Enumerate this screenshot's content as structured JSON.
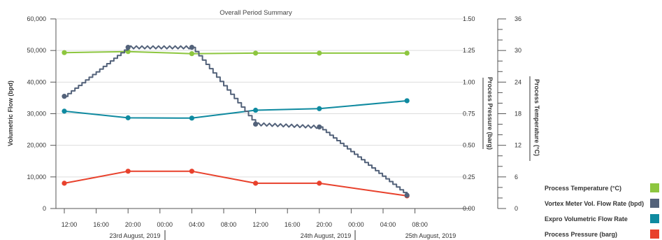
{
  "chart_data": {
    "type": "line",
    "title": "Overall Period Summary",
    "y_left": {
      "label": "Volumetric Flow (bpd)",
      "ylim": [
        0,
        60000
      ],
      "ticks": [
        "0",
        "10,000",
        "20,000",
        "30,000",
        "40,000",
        "50,000",
        "60,000"
      ]
    },
    "y_right1": {
      "label": "Process Pressure (barg)",
      "ylim": [
        0,
        1.5
      ],
      "ticks": [
        "0.00",
        "0.25",
        "0.50",
        "0.75",
        "1.00",
        "1.25",
        "1.50"
      ]
    },
    "y_right2": {
      "label": "Process Temperature (°C)",
      "ylim": [
        0,
        36
      ],
      "ticks": [
        "0",
        "6",
        "12",
        "18",
        "24",
        "30",
        "36"
      ]
    },
    "x_ticks": [
      "12:00",
      "16:00",
      "20:00",
      "00:00",
      "04:00",
      "08:00",
      "12:00",
      "16:00",
      "20:00",
      "00:00",
      "04:00",
      "08:00"
    ],
    "date_labels": [
      "23rd August, 2019",
      "24th August, 2019",
      "25th August, 2019"
    ],
    "x_hours_range": [
      0,
      48
    ],
    "grid": true,
    "legend_position": "bottom-right",
    "series": [
      {
        "name": "Process Temperature (°C)",
        "axis": "temperature",
        "color": "#8dc63f",
        "x_hours": [
          0,
          8,
          16,
          24,
          32,
          43
        ],
        "values": [
          29.6,
          29.8,
          29.4,
          29.5,
          29.5,
          29.5
        ]
      },
      {
        "name": "Vortex Meter Vol. Flow Rate (bpd)",
        "axis": "flow",
        "color": "#53627a",
        "stepped": true,
        "x_hours": [
          0,
          8,
          16,
          24,
          32,
          43
        ],
        "values": [
          35500,
          51000,
          51000,
          26700,
          25800,
          4200
        ]
      },
      {
        "name": "Expro Volumetric Flow Rate",
        "axis": "flow",
        "color": "#0f8aa0",
        "x_hours": [
          0,
          8,
          16,
          24,
          32,
          43
        ],
        "values": [
          30800,
          28700,
          28600,
          31100,
          31600,
          34100
        ]
      },
      {
        "name": "Process Pressure (barg)",
        "axis": "pressure",
        "color": "#e8412c",
        "x_hours": [
          0,
          8,
          16,
          24,
          32,
          43
        ],
        "values": [
          0.2,
          0.295,
          0.295,
          0.2,
          0.2,
          0.1
        ]
      }
    ]
  }
}
